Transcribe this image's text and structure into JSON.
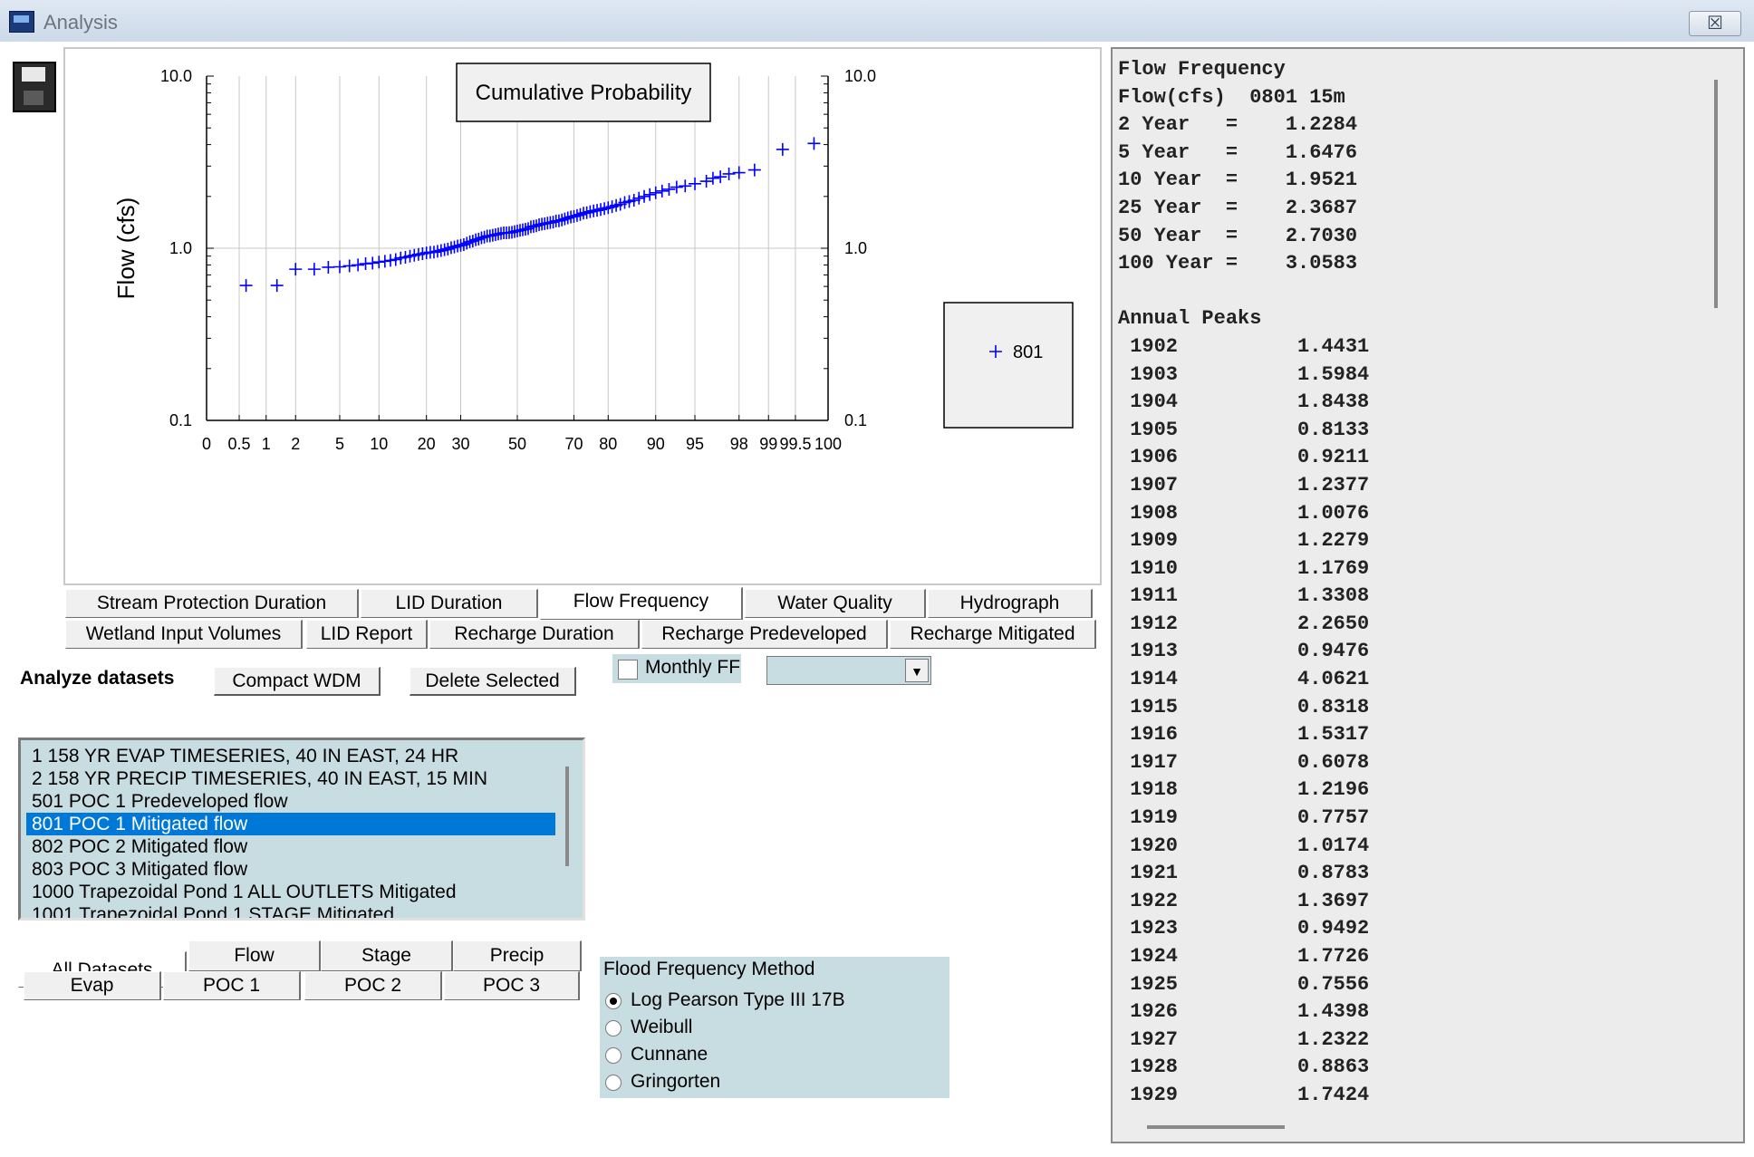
{
  "window": {
    "title": "Analysis",
    "close_label": "☒"
  },
  "chart_data": {
    "type": "scatter",
    "title": "Cumulative Probability",
    "ylabel": "Flow (cfs)",
    "xlabel": "",
    "y_scale": "log",
    "ylim": [
      0.1,
      10.0
    ],
    "y_ticks": [
      "10.0",
      "1.0",
      "0.1"
    ],
    "y_ticks_right": [
      "10.0",
      "1.0",
      "0.1"
    ],
    "x_scale": "normal-probability",
    "x_ticks": [
      "0",
      "0.5",
      "1",
      "2",
      "5",
      "10",
      "20",
      "30",
      "50",
      "70",
      "80",
      "90",
      "95",
      "98",
      "99",
      "99.5",
      "100"
    ],
    "grid": true,
    "legend": {
      "position": "right",
      "entries": [
        "801"
      ],
      "marker": "+"
    },
    "series": [
      {
        "name": "801",
        "color": "#0000ff",
        "marker": "+",
        "points": [
          [
            0.6,
            0.6078
          ],
          [
            1.3,
            0.6078
          ],
          [
            2.0,
            0.7557
          ],
          [
            3.0,
            0.7557
          ],
          [
            4.0,
            0.7757
          ],
          [
            5.0,
            0.78
          ],
          [
            6.0,
            0.79
          ],
          [
            7.0,
            0.8
          ],
          [
            8.0,
            0.8133
          ],
          [
            9.0,
            0.82
          ],
          [
            10.0,
            0.8318
          ],
          [
            11.0,
            0.84
          ],
          [
            12.0,
            0.85
          ],
          [
            13.0,
            0.86
          ],
          [
            14.0,
            0.8783
          ],
          [
            15.0,
            0.8863
          ],
          [
            16.0,
            0.9
          ],
          [
            17.0,
            0.91
          ],
          [
            18.0,
            0.9211
          ],
          [
            19.0,
            0.93
          ],
          [
            20.0,
            0.94
          ],
          [
            21.0,
            0.9476
          ],
          [
            22.0,
            0.9492
          ],
          [
            23.0,
            0.96
          ],
          [
            24.0,
            0.97
          ],
          [
            25.0,
            0.98
          ],
          [
            26.0,
            0.99
          ],
          [
            27.0,
            1.0076
          ],
          [
            28.0,
            1.0174
          ],
          [
            29.0,
            1.03
          ],
          [
            30.0,
            1.04
          ],
          [
            31.0,
            1.05
          ],
          [
            32.0,
            1.07
          ],
          [
            33.0,
            1.09
          ],
          [
            34.0,
            1.1
          ],
          [
            35.0,
            1.12
          ],
          [
            36.0,
            1.13
          ],
          [
            37.0,
            1.15
          ],
          [
            38.0,
            1.16
          ],
          [
            39.0,
            1.1769
          ],
          [
            40.0,
            1.18
          ],
          [
            41.0,
            1.19
          ],
          [
            42.0,
            1.2
          ],
          [
            43.0,
            1.21
          ],
          [
            44.0,
            1.2196
          ],
          [
            45.0,
            1.2279
          ],
          [
            46.0,
            1.2284
          ],
          [
            47.0,
            1.2322
          ],
          [
            48.0,
            1.2377
          ],
          [
            49.0,
            1.25
          ],
          [
            50.0,
            1.26
          ],
          [
            51.0,
            1.27
          ],
          [
            52.0,
            1.28
          ],
          [
            53.0,
            1.29
          ],
          [
            54.0,
            1.3
          ],
          [
            55.0,
            1.3308
          ],
          [
            56.0,
            1.34
          ],
          [
            57.0,
            1.35
          ],
          [
            58.0,
            1.3697
          ],
          [
            59.0,
            1.38
          ],
          [
            60.0,
            1.39
          ],
          [
            61.0,
            1.4
          ],
          [
            62.0,
            1.41
          ],
          [
            63.0,
            1.42
          ],
          [
            64.0,
            1.4398
          ],
          [
            65.0,
            1.4431
          ],
          [
            66.0,
            1.46
          ],
          [
            67.0,
            1.48
          ],
          [
            68.0,
            1.5
          ],
          [
            69.0,
            1.52
          ],
          [
            70.0,
            1.5317
          ],
          [
            71.0,
            1.55
          ],
          [
            72.0,
            1.57
          ],
          [
            73.0,
            1.5984
          ],
          [
            74.0,
            1.61
          ],
          [
            75.0,
            1.63
          ],
          [
            76.0,
            1.6476
          ],
          [
            77.0,
            1.66
          ],
          [
            78.0,
            1.68
          ],
          [
            79.0,
            1.7
          ],
          [
            80.0,
            1.72
          ],
          [
            81.0,
            1.7424
          ],
          [
            82.0,
            1.7726
          ],
          [
            83.0,
            1.8
          ],
          [
            84.0,
            1.8438
          ],
          [
            85.0,
            1.87
          ],
          [
            86.0,
            1.9
          ],
          [
            87.0,
            1.9521
          ],
          [
            88.0,
            2.0
          ],
          [
            89.0,
            2.05
          ],
          [
            90.0,
            2.1
          ],
          [
            91.0,
            2.15
          ],
          [
            92.0,
            2.2
          ],
          [
            93.0,
            2.265
          ],
          [
            94.0,
            2.3
          ],
          [
            95.0,
            2.3687
          ],
          [
            96.0,
            2.45
          ],
          [
            96.5,
            2.55
          ],
          [
            97.0,
            2.6
          ],
          [
            97.5,
            2.703
          ],
          [
            98.0,
            2.75
          ],
          [
            98.6,
            2.85
          ],
          [
            99.3,
            3.75
          ],
          [
            99.7,
            4.0621
          ]
        ]
      }
    ]
  },
  "toolbar": {
    "save_icon": "save-icon"
  },
  "tabs_row1": [
    "Stream Protection Duration",
    "LID Duration",
    "Flow Frequency",
    "Water Quality",
    "Hydrograph"
  ],
  "tabs_row2": [
    "Wetland Input Volumes",
    "LID Report",
    "Recharge Duration",
    "Recharge Predeveloped",
    "Recharge Mitigated"
  ],
  "selected_tab": "Flow Frequency",
  "analyze": {
    "label": "Analyze datasets",
    "compact_button": "Compact WDM",
    "delete_button": "Delete Selected"
  },
  "monthly_ff": {
    "label": "Monthly FF",
    "checked": false,
    "combo_value": ""
  },
  "datasets": [
    "1 158 YR EVAP TIMESERIES, 40 IN EAST, 24 HR",
    "2 158 YR PRECIP TIMESERIES, 40 IN EAST, 15 MIN",
    "501 POC 1 Predeveloped flow",
    "801 POC 1 Mitigated flow",
    "802 POC 2 Mitigated flow",
    "803 POC 3 Mitigated flow",
    "1000 Trapezoidal Pond  1 ALL OUTLETS Mitigated",
    "1001 Trapezoidal Pond  1 STAGE Mitigated"
  ],
  "selected_dataset_index": 3,
  "filter_tabs_row1": [
    "All Datasets",
    "Flow",
    "Stage",
    "Precip"
  ],
  "filter_tabs_row2": [
    "Evap",
    "POC 1",
    "POC 2",
    "POC 3"
  ],
  "flood_method": {
    "title": "Flood Frequency Method",
    "options": [
      "Log Pearson Type III 17B",
      "Weibull",
      "Cunnane",
      "Gringorten"
    ],
    "selected": 0
  },
  "results": {
    "heading": "Flow Frequency",
    "subheading": "Flow(cfs)  0801 15m",
    "return_periods": [
      {
        "label": "2 Year   =",
        "value": "1.2284"
      },
      {
        "label": "5 Year   =",
        "value": "1.6476"
      },
      {
        "label": "10 Year  =",
        "value": "1.9521"
      },
      {
        "label": "25 Year  =",
        "value": "2.3687"
      },
      {
        "label": "50 Year  =",
        "value": "2.7030"
      },
      {
        "label": "100 Year =",
        "value": "3.0583"
      }
    ],
    "peaks_heading": "Annual Peaks",
    "annual_peaks": [
      [
        "1902",
        "1.4431"
      ],
      [
        "1903",
        "1.5984"
      ],
      [
        "1904",
        "1.8438"
      ],
      [
        "1905",
        "0.8133"
      ],
      [
        "1906",
        "0.9211"
      ],
      [
        "1907",
        "1.2377"
      ],
      [
        "1908",
        "1.0076"
      ],
      [
        "1909",
        "1.2279"
      ],
      [
        "1910",
        "1.1769"
      ],
      [
        "1911",
        "1.3308"
      ],
      [
        "1912",
        "2.2650"
      ],
      [
        "1913",
        "0.9476"
      ],
      [
        "1914",
        "4.0621"
      ],
      [
        "1915",
        "0.8318"
      ],
      [
        "1916",
        "1.5317"
      ],
      [
        "1917",
        "0.6078"
      ],
      [
        "1918",
        "1.2196"
      ],
      [
        "1919",
        "0.7757"
      ],
      [
        "1920",
        "1.0174"
      ],
      [
        "1921",
        "0.8783"
      ],
      [
        "1922",
        "1.3697"
      ],
      [
        "1923",
        "0.9492"
      ],
      [
        "1924",
        "1.7726"
      ],
      [
        "1925",
        "0.7556"
      ],
      [
        "1926",
        "1.4398"
      ],
      [
        "1927",
        "1.2322"
      ],
      [
        "1928",
        "0.8863"
      ],
      [
        "1929",
        "1.7424"
      ]
    ]
  }
}
